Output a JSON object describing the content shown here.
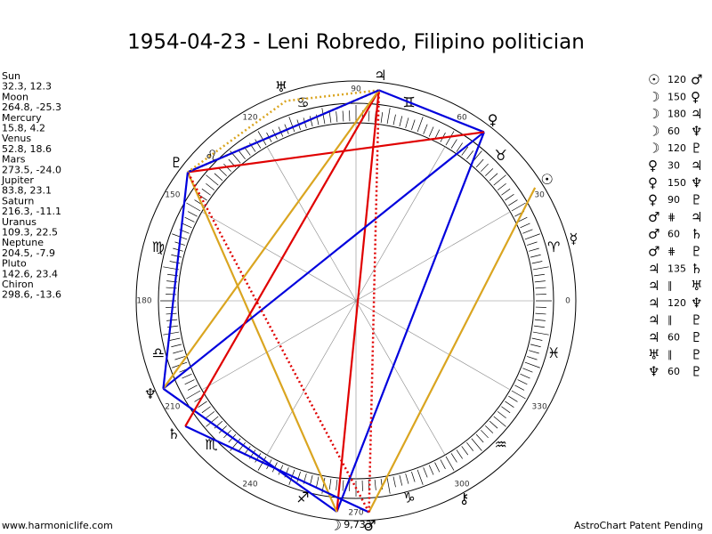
{
  "title": "1954-04-23 - Leni Robredo, Filipino politician",
  "planets": [
    {
      "name": "Sun",
      "coords": "32.3, 12.3",
      "glyph": "☉"
    },
    {
      "name": "Moon",
      "coords": "264.8, -25.3",
      "glyph": "☽"
    },
    {
      "name": "Mercury",
      "coords": "15.8, 4.2",
      "glyph": "☿"
    },
    {
      "name": "Venus",
      "coords": "52.8, 18.6",
      "glyph": "♀"
    },
    {
      "name": "Mars",
      "coords": "273.5, -24.0",
      "glyph": "♂"
    },
    {
      "name": "Jupiter",
      "coords": "83.8, 23.1",
      "glyph": "♃"
    },
    {
      "name": "Saturn",
      "coords": "216.3, -11.1",
      "glyph": "♄"
    },
    {
      "name": "Uranus",
      "coords": "109.3, 22.5",
      "glyph": "♅"
    },
    {
      "name": "Neptune",
      "coords": "204.5, -7.9",
      "glyph": "♆"
    },
    {
      "name": "Pluto",
      "coords": "142.6, 23.4",
      "glyph": "♇"
    },
    {
      "name": "Chiron",
      "coords": "298.6, -13.6",
      "glyph": "⚷"
    }
  ],
  "aspects": [
    {
      "from": 0,
      "label": "120",
      "to": 4,
      "color": "#daa520",
      "dotted": false
    },
    {
      "from": 1,
      "label": "150",
      "to": 3,
      "color": "#0000dd",
      "dotted": false
    },
    {
      "from": 1,
      "label": "180",
      "to": 5,
      "color": "#e00000",
      "dotted": false
    },
    {
      "from": 1,
      "label": "60",
      "to": 8,
      "color": "#0000dd",
      "dotted": false
    },
    {
      "from": 1,
      "label": "120",
      "to": 9,
      "color": "#daa520",
      "dotted": false
    },
    {
      "from": 3,
      "label": "30",
      "to": 5,
      "color": "#0000dd",
      "dotted": false
    },
    {
      "from": 3,
      "label": "150",
      "to": 8,
      "color": "#0000dd",
      "dotted": false
    },
    {
      "from": 3,
      "label": "90",
      "to": 9,
      "color": "#e00000",
      "dotted": false
    },
    {
      "from": 4,
      "label": "⋕",
      "to": 5,
      "color": "#e00000",
      "dotted": true
    },
    {
      "from": 4,
      "label": "60",
      "to": 6,
      "color": "#0000dd",
      "dotted": false
    },
    {
      "from": 4,
      "label": "⋕",
      "to": 9,
      "color": "#e00000",
      "dotted": true
    },
    {
      "from": 5,
      "label": "135",
      "to": 6,
      "color": "#e00000",
      "dotted": false
    },
    {
      "from": 5,
      "label": "∥",
      "to": 7,
      "color": "#daa520",
      "dotted": true
    },
    {
      "from": 5,
      "label": "120",
      "to": 8,
      "color": "#daa520",
      "dotted": false
    },
    {
      "from": 5,
      "label": "∥",
      "to": 9,
      "color": "#daa520",
      "dotted": true
    },
    {
      "from": 5,
      "label": "60",
      "to": 9,
      "color": "#0000dd",
      "dotted": false
    },
    {
      "from": 7,
      "label": "∥",
      "to": 9,
      "color": "#daa520",
      "dotted": true
    },
    {
      "from": 8,
      "label": "60",
      "to": 9,
      "color": "#0000dd",
      "dotted": false
    }
  ],
  "signs": [
    "♈",
    "♉",
    "♊",
    "♋",
    "♌",
    "♍",
    "♎",
    "♏",
    "♐",
    "♑",
    "♒",
    "♓"
  ],
  "degree_labels": [
    0,
    30,
    60,
    90,
    120,
    150,
    180,
    210,
    240,
    270,
    300,
    330
  ],
  "bottom_label": "9,733",
  "footer_left": "www.harmoniclife.com",
  "footer_right": "AstroChart Patent Pending"
}
